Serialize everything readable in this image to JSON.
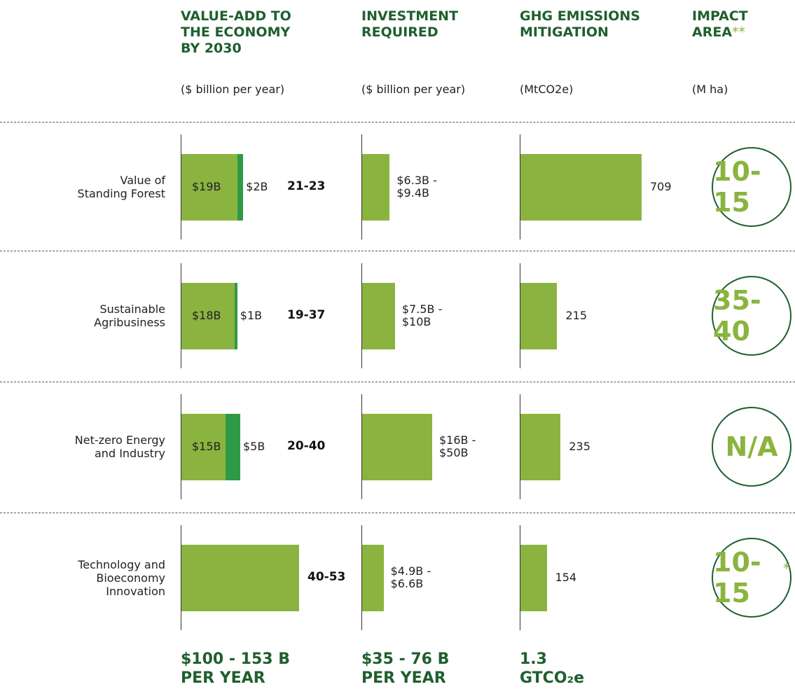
{
  "header": {
    "columns": [
      {
        "title": [
          "VALUE-ADD TO",
          "THE ECONOMY",
          "BY 2030"
        ],
        "unit": "($ billion per year)"
      },
      {
        "title": [
          "INVESTMENT",
          "REQUIRED"
        ],
        "unit": "($ billion per year)"
      },
      {
        "title": [
          "GHG EMISSIONS",
          "MITIGATION"
        ],
        "unit": "(MtCO2e)"
      },
      {
        "title": [
          "IMPACT",
          "AREA"
        ],
        "note": "**",
        "unit": "(M ha)"
      }
    ]
  },
  "rows": [
    {
      "label": [
        "Value of",
        "Standing Forest"
      ],
      "value_add": {
        "segments": [
          {
            "value": 19,
            "label": "$19B"
          },
          {
            "value": 2,
            "label": "$2B"
          }
        ],
        "range": "21-23"
      },
      "investment": {
        "value": 6.3,
        "lines": [
          "$6.3B -",
          "$9.4B"
        ]
      },
      "emissions": 709,
      "impact": {
        "text": "10-15"
      }
    },
    {
      "label": [
        "Sustainable",
        "Agribusiness"
      ],
      "value_add": {
        "segments": [
          {
            "value": 18,
            "label": "$18B"
          },
          {
            "value": 1,
            "label": "$1B"
          }
        ],
        "range": "19-37"
      },
      "investment": {
        "value": 7.5,
        "lines": [
          "$7.5B -",
          "$10B"
        ]
      },
      "emissions": 215,
      "impact": {
        "text": "35-40"
      }
    },
    {
      "label": [
        "Net-zero Energy",
        "and Industry"
      ],
      "value_add": {
        "segments": [
          {
            "value": 15,
            "label": "$15B"
          },
          {
            "value": 5,
            "label": "$5B"
          }
        ],
        "range": "20-40"
      },
      "investment": {
        "value": 16,
        "lines": [
          "$16B -",
          "$50B"
        ]
      },
      "emissions": 235,
      "impact": {
        "text": "N/A"
      }
    },
    {
      "label": [
        "Technology and",
        "Bioeconomy",
        "Innovation"
      ],
      "value_add": {
        "segments": [
          {
            "value": 40
          }
        ],
        "range": "40-53"
      },
      "investment": {
        "value": 4.9,
        "lines": [
          "$4.9B -",
          "$6.6B"
        ]
      },
      "emissions": 154,
      "impact": {
        "text": "10-15",
        "note": "*"
      }
    }
  ],
  "totals": [
    {
      "lines": [
        "$100 - 153 B",
        "PER YEAR"
      ]
    },
    {
      "lines": [
        "$35 - 76 B",
        "PER YEAR"
      ]
    },
    {
      "lines": [
        "1.3",
        "GTCO₂e"
      ]
    }
  ]
}
